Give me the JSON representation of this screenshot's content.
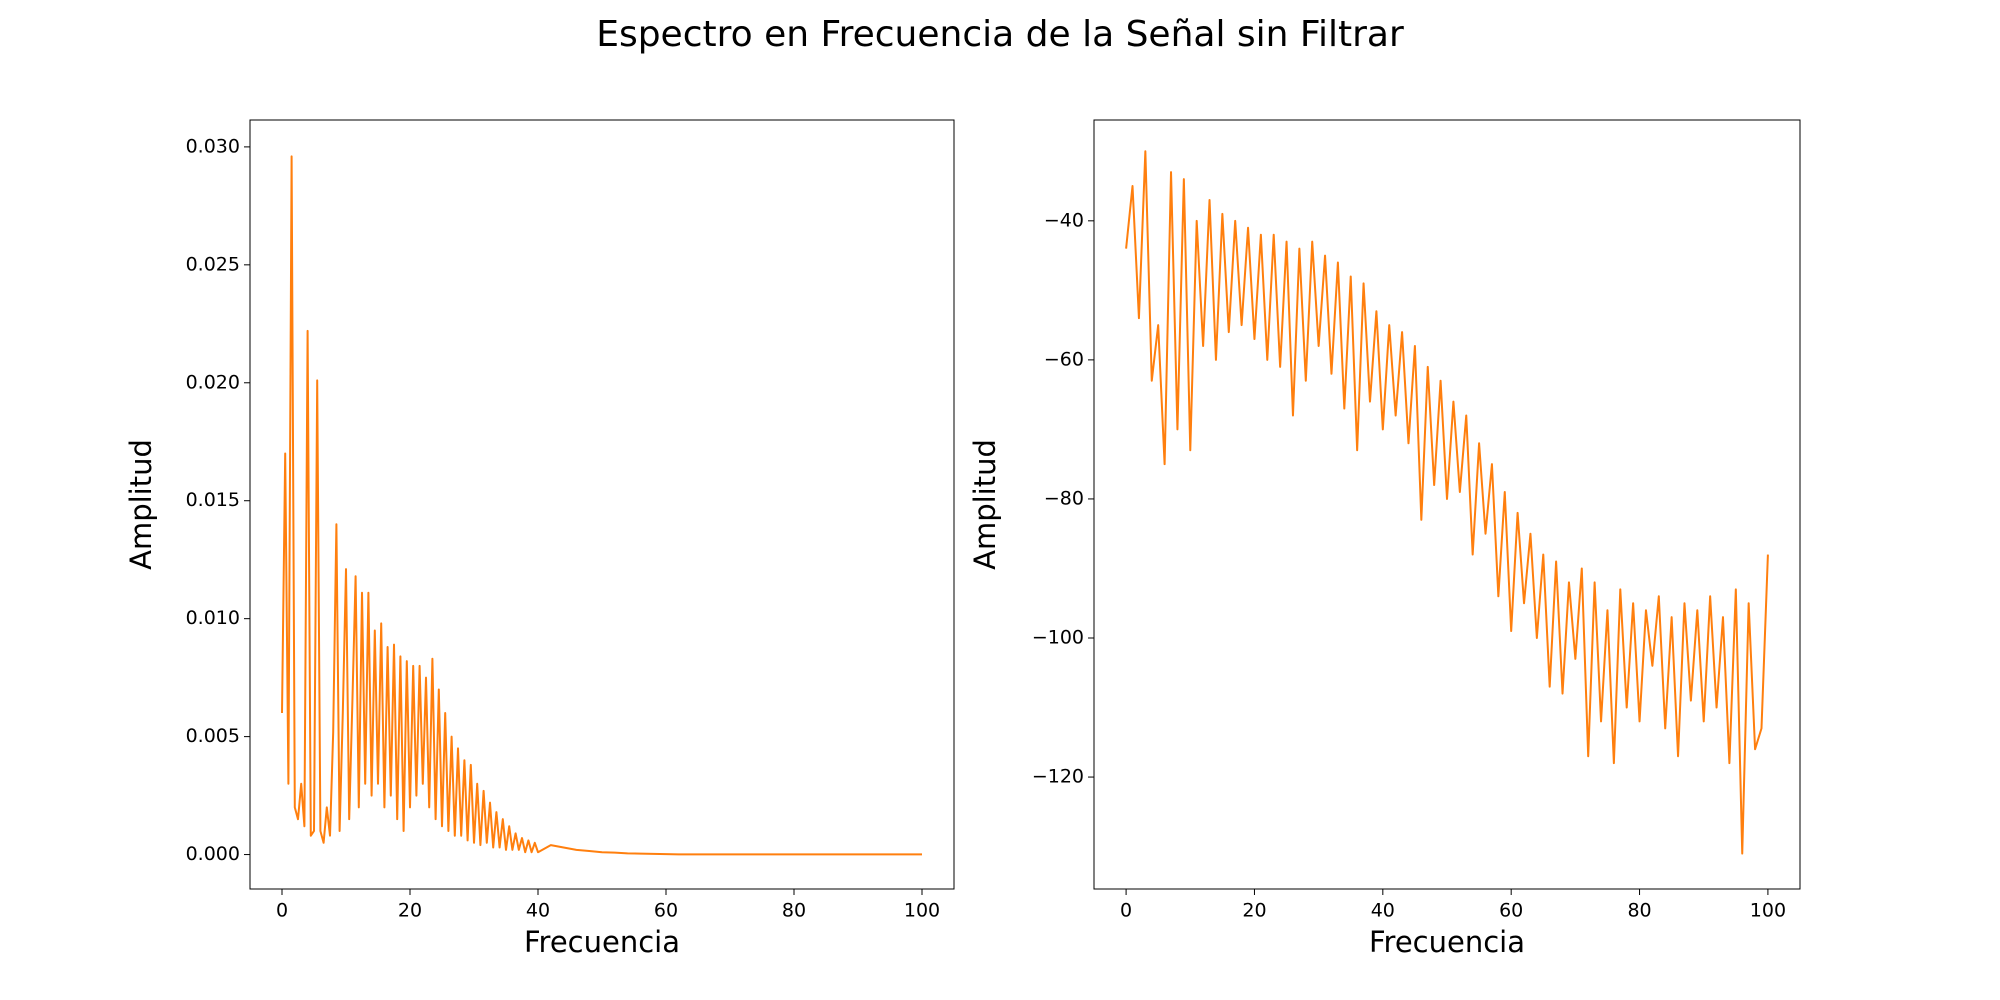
{
  "title": "Espectro en Frecuencia de la Señal sin Filtrar",
  "chart_data": [
    {
      "type": "line",
      "xlabel": "Frecuencia",
      "ylabel": "Amplitud",
      "color": "#ff7f0e",
      "xlim": [
        -5,
        105
      ],
      "ylim": [
        -0.00146,
        0.03114
      ],
      "xticks": [
        0,
        20,
        40,
        60,
        80,
        100
      ],
      "yticks": [
        {
          "value": 0,
          "label": "0.000"
        },
        {
          "value": 0.005,
          "label": "0.005"
        },
        {
          "value": 0.01,
          "label": "0.010"
        },
        {
          "value": 0.015,
          "label": "0.015"
        },
        {
          "value": 0.02,
          "label": "0.020"
        },
        {
          "value": 0.025,
          "label": "0.025"
        },
        {
          "value": 0.03,
          "label": "0.030"
        }
      ],
      "x": [
        0,
        0.5,
        1,
        1.5,
        2,
        2.5,
        3,
        3.5,
        4,
        4.5,
        5,
        5.5,
        6,
        6.5,
        7,
        7.5,
        8,
        8.5,
        9,
        9.5,
        10,
        10.5,
        11,
        11.5,
        12,
        12.5,
        13,
        13.5,
        14,
        14.5,
        15,
        15.5,
        16,
        16.5,
        17,
        17.5,
        18,
        18.5,
        19,
        19.5,
        20,
        20.5,
        21,
        21.5,
        22,
        22.5,
        23,
        23.5,
        24,
        24.5,
        25,
        25.5,
        26,
        26.5,
        27,
        27.5,
        28,
        28.5,
        29,
        29.5,
        30,
        30.5,
        31,
        31.5,
        32,
        32.5,
        33,
        33.5,
        34,
        34.5,
        35,
        35.5,
        36,
        36.5,
        37,
        37.5,
        38,
        38.5,
        39,
        39.5,
        40,
        42,
        44,
        46,
        48,
        50,
        52,
        54,
        56,
        58,
        60,
        62,
        64,
        66,
        68,
        70,
        72,
        74,
        76,
        78,
        80,
        82,
        84,
        86,
        88,
        90,
        92,
        94,
        96,
        98,
        100
      ],
      "values": [
        0.006,
        0.017,
        0.003,
        0.0296,
        0.002,
        0.0015,
        0.003,
        0.0012,
        0.0222,
        0.0008,
        0.001,
        0.0201,
        0.001,
        0.0005,
        0.002,
        0.0008,
        0.0052,
        0.014,
        0.001,
        0.006,
        0.0121,
        0.0015,
        0.0065,
        0.0118,
        0.002,
        0.0111,
        0.003,
        0.0111,
        0.0025,
        0.0095,
        0.003,
        0.0098,
        0.002,
        0.0088,
        0.0025,
        0.0089,
        0.0015,
        0.0084,
        0.001,
        0.0082,
        0.002,
        0.008,
        0.0025,
        0.008,
        0.003,
        0.0075,
        0.002,
        0.0083,
        0.0015,
        0.007,
        0.0012,
        0.006,
        0.001,
        0.005,
        0.0008,
        0.0045,
        0.0008,
        0.004,
        0.0006,
        0.0038,
        0.0005,
        0.003,
        0.0004,
        0.0027,
        0.0005,
        0.0022,
        0.0003,
        0.0018,
        0.0003,
        0.0015,
        0.0002,
        0.0012,
        0.0002,
        0.0009,
        0.0002,
        0.0007,
        0.0001,
        0.0006,
        0.0001,
        0.0005,
        0.0001,
        0.0004,
        0.0003,
        0.0002,
        0.00015,
        0.0001,
        8e-05,
        5e-05,
        4e-05,
        3e-05,
        2e-05,
        1e-05,
        1e-05,
        1e-05,
        1e-05,
        1e-05,
        1e-05,
        1e-05,
        1e-05,
        1e-05,
        1e-05,
        1e-05,
        1e-05,
        1e-05,
        1e-05,
        1e-05,
        1e-05,
        1e-05,
        1e-05,
        1e-05,
        1e-05
      ]
    },
    {
      "type": "line",
      "xlabel": "Frecuencia",
      "ylabel": "Amplitud",
      "color": "#ff7f0e",
      "xlim": [
        -5,
        105
      ],
      "ylim": [
        -136.1,
        -25.5
      ],
      "xticks": [
        0,
        20,
        40,
        60,
        80,
        100
      ],
      "yticks": [
        {
          "value": -120,
          "label": "−120"
        },
        {
          "value": -100,
          "label": "−100"
        },
        {
          "value": -80,
          "label": "−80"
        },
        {
          "value": -60,
          "label": "−60"
        },
        {
          "value": -40,
          "label": "−40"
        }
      ],
      "x": [
        0,
        1,
        2,
        3,
        4,
        5,
        6,
        7,
        8,
        9,
        10,
        11,
        12,
        13,
        14,
        15,
        16,
        17,
        18,
        19,
        20,
        21,
        22,
        23,
        24,
        25,
        26,
        27,
        28,
        29,
        30,
        31,
        32,
        33,
        34,
        35,
        36,
        37,
        38,
        39,
        40,
        41,
        42,
        43,
        44,
        45,
        46,
        47,
        48,
        49,
        50,
        51,
        52,
        53,
        54,
        55,
        56,
        57,
        58,
        59,
        60,
        61,
        62,
        63,
        64,
        65,
        66,
        67,
        68,
        69,
        70,
        71,
        72,
        73,
        74,
        75,
        76,
        77,
        78,
        79,
        80,
        81,
        82,
        83,
        84,
        85,
        86,
        87,
        88,
        89,
        90,
        91,
        92,
        93,
        94,
        95,
        96,
        97,
        98,
        99,
        100
      ],
      "values": [
        -44,
        -35,
        -54,
        -30,
        -63,
        -55,
        -75,
        -33,
        -70,
        -34,
        -73,
        -40,
        -58,
        -37,
        -60,
        -39,
        -56,
        -40,
        -55,
        -41,
        -57,
        -42,
        -60,
        -42,
        -61,
        -43,
        -68,
        -44,
        -63,
        -43,
        -58,
        -45,
        -62,
        -46,
        -67,
        -48,
        -73,
        -49,
        -66,
        -53,
        -70,
        -55,
        -68,
        -56,
        -72,
        -58,
        -83,
        -61,
        -78,
        -63,
        -80,
        -66,
        -79,
        -68,
        -88,
        -72,
        -85,
        -75,
        -94,
        -79,
        -99,
        -82,
        -95,
        -85,
        -100,
        -88,
        -107,
        -89,
        -108,
        -92,
        -103,
        -90,
        -117,
        -92,
        -112,
        -96,
        -118,
        -93,
        -110,
        -95,
        -112,
        -96,
        -104,
        -94,
        -113,
        -97,
        -117,
        -95,
        -109,
        -96,
        -112,
        -94,
        -110,
        -97,
        -118,
        -93,
        -131,
        -95,
        -116,
        -113,
        -88
      ]
    }
  ]
}
